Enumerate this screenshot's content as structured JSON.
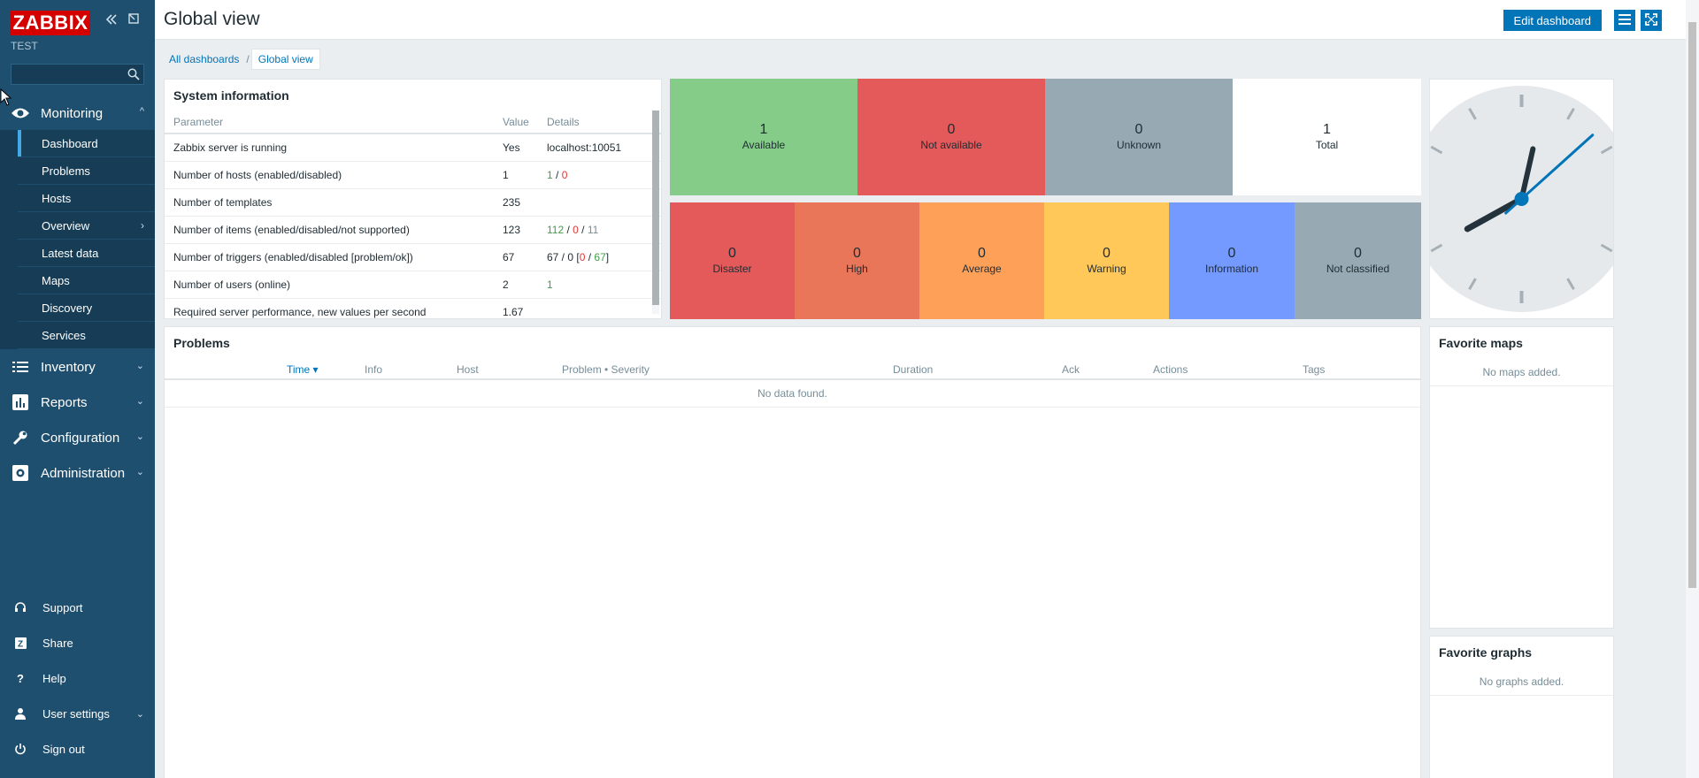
{
  "sidebar": {
    "brand": "ZABBIX",
    "server_name": "TEST",
    "search": {
      "value": "",
      "placeholder": ""
    },
    "sections": [
      {
        "label": "Monitoring",
        "icon": "eye-icon",
        "expanded": true
      },
      {
        "label": "Inventory",
        "icon": "list-icon"
      },
      {
        "label": "Reports",
        "icon": "bar-chart-icon"
      },
      {
        "label": "Configuration",
        "icon": "wrench-icon"
      },
      {
        "label": "Administration",
        "icon": "gear-icon"
      }
    ],
    "monitoring_items": [
      {
        "label": "Dashboard",
        "active": true
      },
      {
        "label": "Problems"
      },
      {
        "label": "Hosts"
      },
      {
        "label": "Overview",
        "has_submenu": true
      },
      {
        "label": "Latest data"
      },
      {
        "label": "Maps"
      },
      {
        "label": "Discovery"
      },
      {
        "label": "Services"
      }
    ],
    "bottom_items": [
      {
        "label": "Support",
        "icon": "headset-icon"
      },
      {
        "label": "Share",
        "icon": "share-icon"
      },
      {
        "label": "Help",
        "icon": "help-icon"
      },
      {
        "label": "User settings",
        "icon": "user-icon"
      },
      {
        "label": "Sign out",
        "icon": "power-icon"
      }
    ]
  },
  "header": {
    "title": "Global view",
    "edit_button": "Edit dashboard"
  },
  "breadcrumb": {
    "all": "All dashboards",
    "separator": "/",
    "current": "Global view"
  },
  "system_info": {
    "title": "System information",
    "columns": [
      "Parameter",
      "Value",
      "Details"
    ],
    "rows": [
      {
        "parameter": "Zabbix server is running",
        "value": "Yes",
        "details": "localhost:10051"
      },
      {
        "parameter": "Number of hosts (enabled/disabled)",
        "value": "1",
        "d1": "1",
        "s1": " / ",
        "d2": "0"
      },
      {
        "parameter": "Number of templates",
        "value": "235",
        "details": ""
      },
      {
        "parameter": "Number of items (enabled/disabled/not supported)",
        "value": "123",
        "d1": "112",
        "s1": " / ",
        "d2": "0",
        "s2": " / ",
        "d3": "11"
      },
      {
        "parameter": "Number of triggers (enabled/disabled [problem/ok])",
        "value": "67",
        "p1": "67 / 0 [",
        "d1": "0",
        "s1": " / ",
        "d2": "67",
        "s2": "]"
      },
      {
        "parameter": "Number of users (online)",
        "value": "2",
        "d1": "1"
      },
      {
        "parameter": "Required server performance, new values per second",
        "value": "1.67",
        "details": ""
      }
    ]
  },
  "host_availability": {
    "tiles": [
      {
        "count": "1",
        "label": "Available",
        "color": "#86cc89"
      },
      {
        "count": "0",
        "label": "Not available",
        "color": "#e45959"
      },
      {
        "count": "0",
        "label": "Unknown",
        "color": "#97aab3"
      },
      {
        "count": "1",
        "label": "Total",
        "color": "#ffffff"
      }
    ]
  },
  "problems_by_severity": {
    "tiles": [
      {
        "count": "0",
        "label": "Disaster",
        "color": "#e45959"
      },
      {
        "count": "0",
        "label": "High",
        "color": "#e97659"
      },
      {
        "count": "0",
        "label": "Average",
        "color": "#ffa059"
      },
      {
        "count": "0",
        "label": "Warning",
        "color": "#ffc859"
      },
      {
        "count": "0",
        "label": "Information",
        "color": "#7499ff"
      },
      {
        "count": "0",
        "label": "Not classified",
        "color": "#97aab3"
      }
    ]
  },
  "clock": {
    "hours": 8,
    "minutes": 2,
    "seconds": 8
  },
  "problems": {
    "title": "Problems",
    "columns": [
      "Time ▾",
      "Info",
      "Host",
      "Problem • Severity",
      "Duration",
      "Ack",
      "Actions",
      "Tags"
    ],
    "empty": "No data found."
  },
  "favorite_maps": {
    "title": "Favorite maps",
    "empty": "No maps added."
  },
  "favorite_graphs": {
    "title": "Favorite graphs",
    "empty": "No graphs added."
  },
  "colors": {
    "sidebar": "#1f4f6e",
    "accent": "#0275b8",
    "brand": "#d40000"
  }
}
